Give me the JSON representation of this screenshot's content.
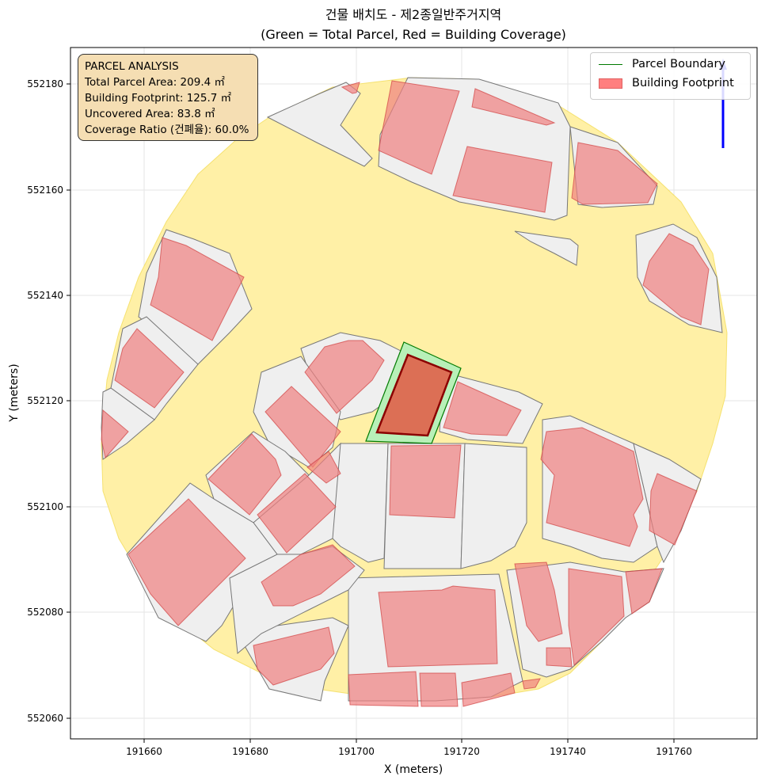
{
  "title": {
    "line1": "건물 배치도 - 제2종일반주거지역",
    "line2": "(Green = Total Parcel, Red = Building Coverage)"
  },
  "axes": {
    "xlabel": "X (meters)",
    "ylabel": "Y (meters)",
    "xticks": [
      "191660",
      "191680",
      "191700",
      "191720",
      "191740",
      "191760"
    ],
    "yticks": [
      "552180",
      "552160",
      "552140",
      "552120",
      "552100",
      "552080",
      "552060"
    ]
  },
  "info_box": {
    "heading": "PARCEL ANALYSIS",
    "line1": "Total Parcel Area: 209.4 ㎡",
    "line2": "Building Footprint: 125.7 ㎡",
    "line3": "Uncovered Area: 83.8 ㎡",
    "line4": "Coverage Ratio (건폐율): 60.0%"
  },
  "legend": {
    "parcel": "Parcel Boundary",
    "building": "Building Footprint"
  },
  "colors": {
    "road": "#fff0a6",
    "parcel_fill": "#efefef",
    "building": "#ef8080",
    "target_parcel": "#b8f0b8",
    "target_building": "#e0604a",
    "parcel_line": "#007a00",
    "north_arrow": "#0000ff"
  },
  "chart_data": {
    "type": "map",
    "x_range": [
      191646,
      191776
    ],
    "y_range": [
      552056,
      552187
    ],
    "grid": true,
    "legend_position": "top-right",
    "target_parcel": {
      "area_m2": 209.4,
      "building_footprint_m2": 125.7,
      "uncovered_m2": 83.8,
      "coverage_ratio_pct": 60.0
    }
  }
}
